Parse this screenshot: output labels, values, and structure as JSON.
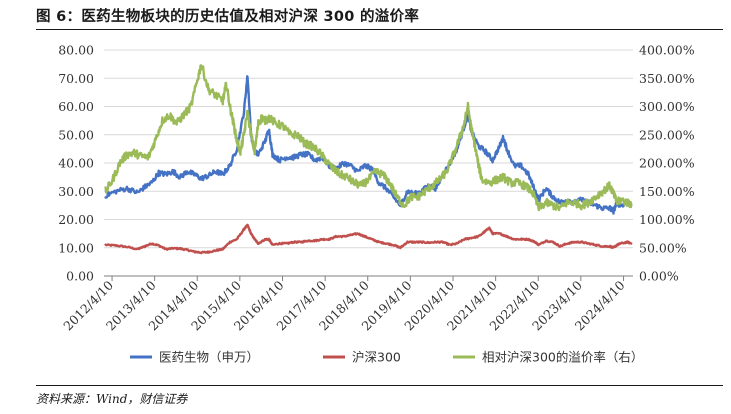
{
  "figure": {
    "title": "图 6：医药生物板块的历史估值及相对沪深 300 的溢价率",
    "source": "资料来源：Wind，财信证券"
  },
  "chart_data": {
    "type": "line",
    "x_tick_labels": [
      "2012/4/10",
      "2013/4/10",
      "2014/4/10",
      "2015/4/10",
      "2016/4/10",
      "2017/4/10",
      "2018/4/10",
      "2019/4/10",
      "2020/4/10",
      "2021/4/10",
      "2022/4/10",
      "2023/4/10",
      "2024/4/10"
    ],
    "x_range": [
      "2012-02-01",
      "2024-06-30"
    ],
    "y_left": {
      "min": 0,
      "max": 80,
      "step": 10,
      "tick_labels": [
        "0.00",
        "10.00",
        "20.00",
        "30.00",
        "40.00",
        "50.00",
        "60.00",
        "70.00",
        "80.00"
      ]
    },
    "y_right": {
      "min": 0,
      "max": 400,
      "step": 50,
      "tick_labels": [
        "0.00%",
        "50.00%",
        "100.00%",
        "150.00%",
        "200.00%",
        "250.00%",
        "300.00%",
        "350.00%",
        "400.00%"
      ]
    },
    "legend_position": "bottom",
    "series": [
      {
        "name": "医药生物（申万）",
        "axis": "left",
        "color": "#4472C4",
        "points": [
          [
            "2012-02",
            28.5
          ],
          [
            "2012-05",
            30
          ],
          [
            "2012-08",
            31
          ],
          [
            "2012-11",
            29.5
          ],
          [
            "2013-01",
            31.5
          ],
          [
            "2013-03",
            33
          ],
          [
            "2013-05",
            36.5
          ],
          [
            "2013-07",
            36
          ],
          [
            "2013-09",
            37
          ],
          [
            "2013-11",
            35
          ],
          [
            "2014-01",
            37
          ],
          [
            "2014-03",
            36
          ],
          [
            "2014-05",
            34.5
          ],
          [
            "2014-07",
            35.5
          ],
          [
            "2014-09",
            37
          ],
          [
            "2014-11",
            36
          ],
          [
            "2015-01",
            39
          ],
          [
            "2015-03",
            45
          ],
          [
            "2015-05",
            58
          ],
          [
            "2015-06",
            71
          ],
          [
            "2015-07",
            50
          ],
          [
            "2015-08",
            44
          ],
          [
            "2015-09",
            43
          ],
          [
            "2015-11",
            48
          ],
          [
            "2015-12",
            52
          ],
          [
            "2016-01",
            43
          ],
          [
            "2016-03",
            41
          ],
          [
            "2016-05",
            42
          ],
          [
            "2016-07",
            42
          ],
          [
            "2016-09",
            43
          ],
          [
            "2016-11",
            43
          ],
          [
            "2017-01",
            41
          ],
          [
            "2017-03",
            42
          ],
          [
            "2017-05",
            39
          ],
          [
            "2017-07",
            38
          ],
          [
            "2017-09",
            40
          ],
          [
            "2017-11",
            39
          ],
          [
            "2018-01",
            37
          ],
          [
            "2018-03",
            39
          ],
          [
            "2018-05",
            38
          ],
          [
            "2018-07",
            33
          ],
          [
            "2018-09",
            31
          ],
          [
            "2018-11",
            28
          ],
          [
            "2019-01",
            25
          ],
          [
            "2019-03",
            30
          ],
          [
            "2019-05",
            29
          ],
          [
            "2019-07",
            30
          ],
          [
            "2019-09",
            32
          ],
          [
            "2019-11",
            31
          ],
          [
            "2020-01",
            36
          ],
          [
            "2020-03",
            40
          ],
          [
            "2020-05",
            45
          ],
          [
            "2020-07",
            53
          ],
          [
            "2020-08",
            57
          ],
          [
            "2020-09",
            51
          ],
          [
            "2020-11",
            46
          ],
          [
            "2021-01",
            44
          ],
          [
            "2021-03",
            41
          ],
          [
            "2021-05",
            46
          ],
          [
            "2021-06",
            49
          ],
          [
            "2021-07",
            45
          ],
          [
            "2021-09",
            39
          ],
          [
            "2021-11",
            39
          ],
          [
            "2022-01",
            36
          ],
          [
            "2022-03",
            30
          ],
          [
            "2022-04",
            27
          ],
          [
            "2022-06",
            31
          ],
          [
            "2022-08",
            28
          ],
          [
            "2022-10",
            26
          ],
          [
            "2022-12",
            27
          ],
          [
            "2023-02",
            26
          ],
          [
            "2023-04",
            27
          ],
          [
            "2023-06",
            26
          ],
          [
            "2023-08",
            25
          ],
          [
            "2023-10",
            24
          ],
          [
            "2023-12",
            24
          ],
          [
            "2024-01",
            23
          ],
          [
            "2024-02",
            26
          ],
          [
            "2024-03",
            25
          ],
          [
            "2024-05",
            26
          ],
          [
            "2024-06",
            25
          ]
        ]
      },
      {
        "name": "沪深300",
        "axis": "left",
        "color": "#C0504D",
        "points": [
          [
            "2012-02",
            11
          ],
          [
            "2012-05",
            10.8
          ],
          [
            "2012-08",
            10.3
          ],
          [
            "2012-11",
            9.5
          ],
          [
            "2013-01",
            10.5
          ],
          [
            "2013-03",
            11.5
          ],
          [
            "2013-05",
            10.8
          ],
          [
            "2013-07",
            9.5
          ],
          [
            "2013-09",
            9.8
          ],
          [
            "2013-11",
            9.7
          ],
          [
            "2014-01",
            9.2
          ],
          [
            "2014-03",
            8.6
          ],
          [
            "2014-05",
            8.3
          ],
          [
            "2014-07",
            8.5
          ],
          [
            "2014-09",
            9.0
          ],
          [
            "2014-11",
            9.5
          ],
          [
            "2015-01",
            12
          ],
          [
            "2015-03",
            13
          ],
          [
            "2015-05",
            16.5
          ],
          [
            "2015-06",
            18
          ],
          [
            "2015-07",
            15
          ],
          [
            "2015-08",
            13
          ],
          [
            "2015-09",
            11.5
          ],
          [
            "2015-11",
            13
          ],
          [
            "2015-12",
            13
          ],
          [
            "2016-01",
            11
          ],
          [
            "2016-03",
            11.5
          ],
          [
            "2016-05",
            11.5
          ],
          [
            "2016-07",
            12
          ],
          [
            "2016-09",
            12
          ],
          [
            "2016-11",
            12.5
          ],
          [
            "2017-01",
            12.5
          ],
          [
            "2017-03",
            13
          ],
          [
            "2017-05",
            13
          ],
          [
            "2017-07",
            14
          ],
          [
            "2017-09",
            14
          ],
          [
            "2017-11",
            14.5
          ],
          [
            "2018-01",
            15
          ],
          [
            "2018-03",
            14
          ],
          [
            "2018-05",
            13
          ],
          [
            "2018-07",
            12
          ],
          [
            "2018-09",
            11.5
          ],
          [
            "2018-11",
            11
          ],
          [
            "2019-01",
            10
          ],
          [
            "2019-03",
            12
          ],
          [
            "2019-05",
            12
          ],
          [
            "2019-07",
            12
          ],
          [
            "2019-09",
            11.8
          ],
          [
            "2019-11",
            12
          ],
          [
            "2020-01",
            12
          ],
          [
            "2020-03",
            11
          ],
          [
            "2020-05",
            11.5
          ],
          [
            "2020-07",
            13
          ],
          [
            "2020-09",
            13.5
          ],
          [
            "2020-11",
            14
          ],
          [
            "2021-01",
            16
          ],
          [
            "2021-02",
            17
          ],
          [
            "2021-03",
            15
          ],
          [
            "2021-05",
            15
          ],
          [
            "2021-07",
            14
          ],
          [
            "2021-09",
            13
          ],
          [
            "2021-11",
            13
          ],
          [
            "2022-01",
            13
          ],
          [
            "2022-03",
            12
          ],
          [
            "2022-04",
            11
          ],
          [
            "2022-06",
            12.5
          ],
          [
            "2022-08",
            12
          ],
          [
            "2022-10",
            10.5
          ],
          [
            "2022-12",
            11.5
          ],
          [
            "2023-02",
            12
          ],
          [
            "2023-04",
            12
          ],
          [
            "2023-06",
            11.5
          ],
          [
            "2023-08",
            11
          ],
          [
            "2023-10",
            10.5
          ],
          [
            "2023-12",
            10.5
          ],
          [
            "2024-01",
            10
          ],
          [
            "2024-02",
            11
          ],
          [
            "2024-03",
            11.5
          ],
          [
            "2024-05",
            12
          ],
          [
            "2024-06",
            11.5
          ]
        ]
      },
      {
        "name": "相对沪深300的溢价率（右）",
        "axis": "right",
        "color": "#9BBB59",
        "points": [
          [
            "2012-02",
            150
          ],
          [
            "2012-04",
            170
          ],
          [
            "2012-06",
            200
          ],
          [
            "2012-08",
            215
          ],
          [
            "2012-10",
            218
          ],
          [
            "2012-12",
            212
          ],
          [
            "2013-02",
            210
          ],
          [
            "2013-04",
            240
          ],
          [
            "2013-06",
            275
          ],
          [
            "2013-08",
            285
          ],
          [
            "2013-10",
            270
          ],
          [
            "2013-12",
            285
          ],
          [
            "2014-02",
            300
          ],
          [
            "2014-04",
            350
          ],
          [
            "2014-05",
            375
          ],
          [
            "2014-07",
            330
          ],
          [
            "2014-09",
            320
          ],
          [
            "2014-11",
            310
          ],
          [
            "2014-12",
            340
          ],
          [
            "2015-01",
            300
          ],
          [
            "2015-02",
            270
          ],
          [
            "2015-03",
            240
          ],
          [
            "2015-04",
            220
          ],
          [
            "2015-05",
            250
          ],
          [
            "2015-06",
            290
          ],
          [
            "2015-07",
            250
          ],
          [
            "2015-08",
            220
          ],
          [
            "2015-09",
            270
          ],
          [
            "2015-10",
            280
          ],
          [
            "2015-11",
            275
          ],
          [
            "2015-12",
            280
          ],
          [
            "2016-02",
            270
          ],
          [
            "2016-04",
            265
          ],
          [
            "2016-06",
            250
          ],
          [
            "2016-08",
            250
          ],
          [
            "2016-10",
            235
          ],
          [
            "2016-12",
            230
          ],
          [
            "2017-02",
            220
          ],
          [
            "2017-04",
            205
          ],
          [
            "2017-06",
            190
          ],
          [
            "2017-08",
            180
          ],
          [
            "2017-10",
            175
          ],
          [
            "2017-12",
            165
          ],
          [
            "2018-02",
            160
          ],
          [
            "2018-04",
            170
          ],
          [
            "2018-06",
            185
          ],
          [
            "2018-08",
            180
          ],
          [
            "2018-10",
            165
          ],
          [
            "2018-12",
            140
          ],
          [
            "2019-02",
            125
          ],
          [
            "2019-04",
            140
          ],
          [
            "2019-06",
            140
          ],
          [
            "2019-08",
            150
          ],
          [
            "2019-10",
            160
          ],
          [
            "2019-12",
            170
          ],
          [
            "2020-02",
            185
          ],
          [
            "2020-04",
            215
          ],
          [
            "2020-06",
            250
          ],
          [
            "2020-07",
            270
          ],
          [
            "2020-08",
            300
          ],
          [
            "2020-09",
            260
          ],
          [
            "2020-10",
            230
          ],
          [
            "2020-11",
            195
          ],
          [
            "2020-12",
            170
          ],
          [
            "2021-02",
            165
          ],
          [
            "2021-04",
            170
          ],
          [
            "2021-06",
            175
          ],
          [
            "2021-08",
            165
          ],
          [
            "2021-10",
            165
          ],
          [
            "2021-12",
            160
          ],
          [
            "2022-02",
            150
          ],
          [
            "2022-04",
            120
          ],
          [
            "2022-06",
            130
          ],
          [
            "2022-08",
            125
          ],
          [
            "2022-10",
            120
          ],
          [
            "2022-12",
            130
          ],
          [
            "2023-02",
            130
          ],
          [
            "2023-04",
            125
          ],
          [
            "2023-06",
            130
          ],
          [
            "2023-08",
            140
          ],
          [
            "2023-10",
            150
          ],
          [
            "2023-12",
            160
          ],
          [
            "2024-01",
            145
          ],
          [
            "2024-02",
            130
          ],
          [
            "2024-03",
            135
          ],
          [
            "2024-05",
            130
          ],
          [
            "2024-06",
            128
          ]
        ]
      }
    ]
  }
}
